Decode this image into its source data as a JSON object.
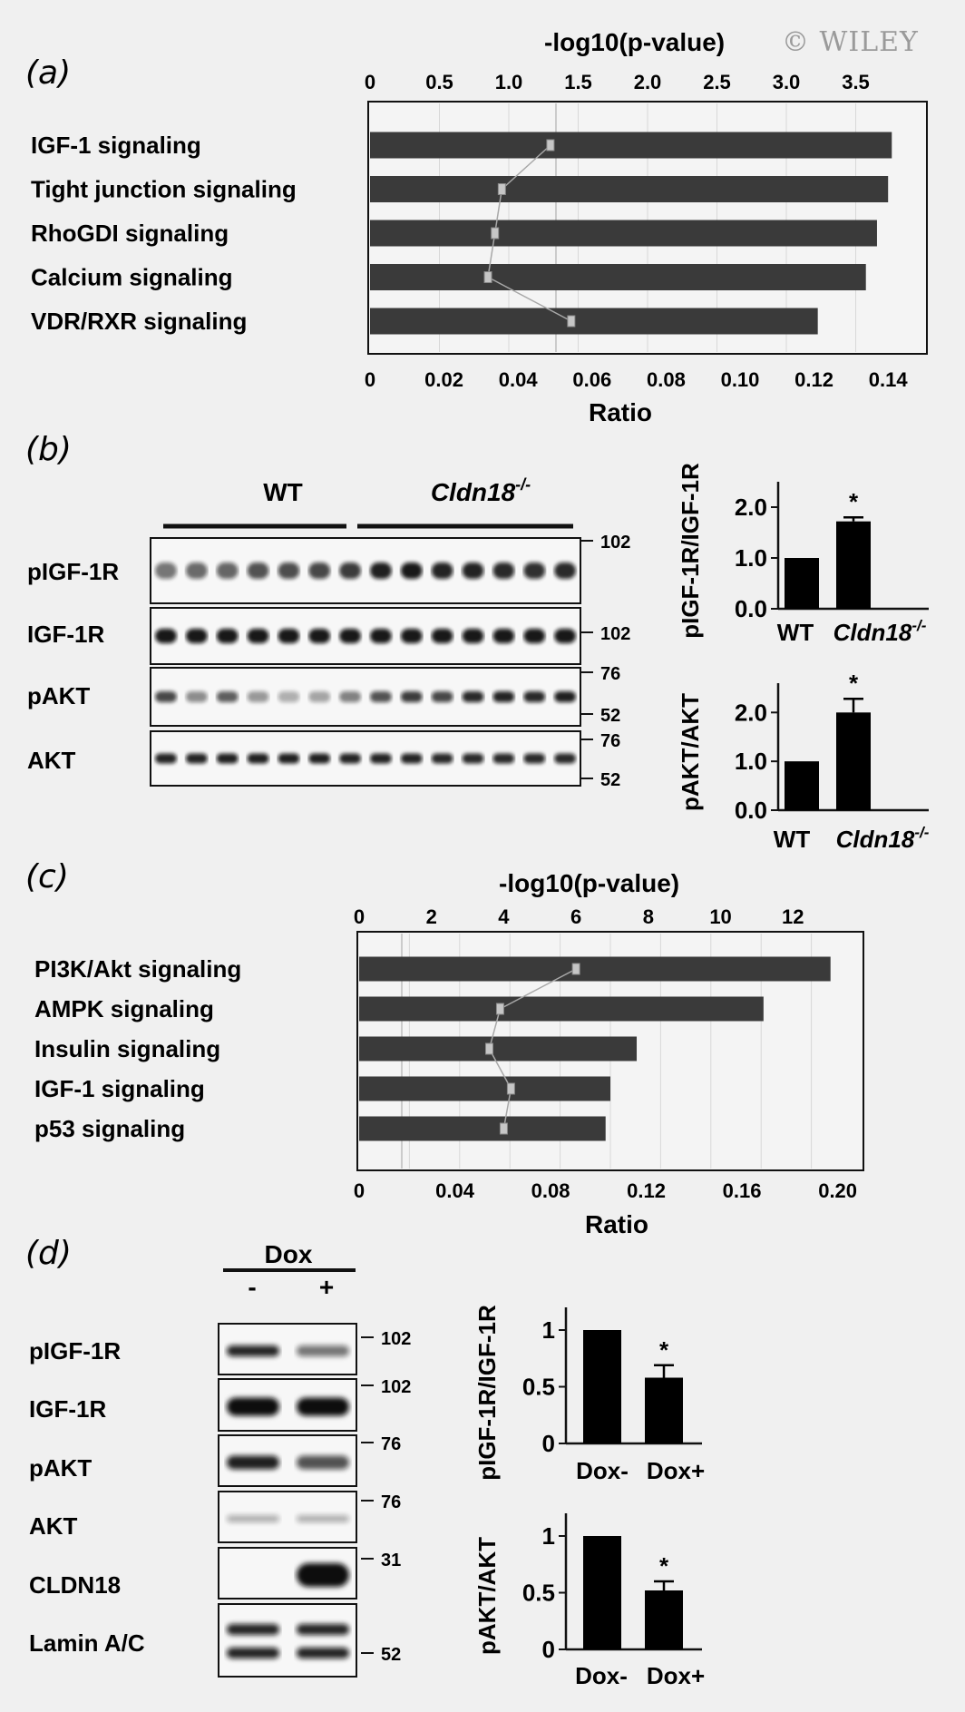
{
  "watermark": "© WILEY",
  "panels": {
    "a": {
      "label": "(a)",
      "top_axis_title": "-log10(p-value)",
      "top_ticks": [
        "0",
        "0.5",
        "1.0",
        "1.5",
        "2.0",
        "2.5",
        "3.0",
        "3.5"
      ],
      "bottom_ticks": [
        "0",
        "0.02",
        "0.04",
        "0.06",
        "0.08",
        "0.10",
        "0.12",
        "0.14"
      ],
      "bottom_axis_title": "Ratio"
    },
    "b": {
      "label": "(b)",
      "group_wt": "WT",
      "group_ko_base": "Cldn18",
      "group_ko_sup": "-/-",
      "blots": [
        "pIGF-1R",
        "IGF-1R",
        "pAKT",
        "AKT"
      ],
      "markers": {
        "pIGF1R": "102",
        "IGF1R": "102",
        "pAKT_top": "76",
        "pAKT_bottom": "52",
        "AKT_top": "76",
        "AKT_bottom": "52"
      }
    },
    "c": {
      "label": "(c)",
      "top_axis_title": "-log10(p-value)",
      "top_ticks": [
        "0",
        "2",
        "4",
        "6",
        "8",
        "10",
        "12"
      ],
      "bottom_ticks": [
        "0",
        "0.04",
        "0.08",
        "0.12",
        "0.16",
        "0.20"
      ],
      "bottom_axis_title": "Ratio"
    },
    "d": {
      "label": "(d)",
      "dox_title": "Dox",
      "minus": "-",
      "plus": "+",
      "blots": [
        "pIGF-1R",
        "IGF-1R",
        "pAKT",
        "AKT",
        "CLDN18",
        "Lamin A/C"
      ],
      "markers": {
        "pIGF1R": "102",
        "IGF1R": "102",
        "pAKT": "76",
        "AKT": "76",
        "CLDN18": "31",
        "Lamin": "52"
      }
    }
  },
  "chart_data": [
    {
      "id": "a",
      "type": "bar",
      "orientation": "horizontal",
      "categories": [
        "IGF-1 signaling",
        "Tight junction signaling",
        "RhoGDI signaling",
        "Calcium signaling",
        "VDR/RXR signaling"
      ],
      "series": [
        {
          "values": [
            0.141,
            0.14,
            0.137,
            0.134,
            0.121
          ]
        },
        {
          "values": [
            1.3,
            0.95,
            0.9,
            0.85,
            1.45
          ]
        }
      ],
      "xlim": [
        0,
        0.15
      ],
      "x2lim": [
        0,
        4.0
      ],
      "xlabel": "Ratio",
      "x2label": "-log10(p-value)"
    },
    {
      "id": "b1",
      "type": "bar",
      "categories": [
        "WT",
        "Cldn18-/-"
      ],
      "values": [
        1.0,
        1.72
      ],
      "errors": [
        0.0,
        0.08
      ],
      "ylabel": "pIGF-1R/IGF-1R",
      "yticks": [
        "0.0",
        "1.0",
        "2.0"
      ],
      "ylim": [
        0,
        2.5
      ],
      "significance": [
        "",
        "*"
      ]
    },
    {
      "id": "b2",
      "type": "bar",
      "categories": [
        "WT",
        "Cldn18-/-"
      ],
      "values": [
        1.0,
        2.0
      ],
      "errors": [
        0.0,
        0.28
      ],
      "ylabel": "pAKT/AKT",
      "yticks": [
        "0.0",
        "1.0",
        "2.0"
      ],
      "ylim": [
        0,
        2.6
      ],
      "significance": [
        "",
        "*"
      ]
    },
    {
      "id": "c",
      "type": "bar",
      "orientation": "horizontal",
      "categories": [
        "PI3K/Akt signaling",
        "AMPK signaling",
        "Insulin signaling",
        "IGF-1 signaling",
        "p53 signaling"
      ],
      "series": [
        {
          "values": [
            0.197,
            0.169,
            0.116,
            0.105,
            0.103
          ]
        },
        {
          "values": [
            6.0,
            3.9,
            3.6,
            4.2,
            4.0
          ]
        }
      ],
      "xlim": [
        0,
        0.21
      ],
      "x2lim": [
        0,
        13.9
      ],
      "xlabel": "Ratio",
      "x2label": "-log10(p-value)"
    },
    {
      "id": "d1",
      "type": "bar",
      "categories": [
        "Dox-",
        "Dox+"
      ],
      "values": [
        1.0,
        0.58
      ],
      "errors": [
        0.0,
        0.11
      ],
      "ylabel": "pIGF-1R/IGF-1R",
      "yticks": [
        "0",
        "0.5",
        "1"
      ],
      "ylim": [
        0,
        1.2
      ],
      "significance": [
        "",
        "*"
      ]
    },
    {
      "id": "d2",
      "type": "bar",
      "categories": [
        "Dox-",
        "Dox+"
      ],
      "values": [
        1.0,
        0.52
      ],
      "errors": [
        0.0,
        0.08
      ],
      "ylabel": "pAKT/AKT",
      "yticks": [
        "0",
        "0.5",
        "1"
      ],
      "ylim": [
        0,
        1.2
      ],
      "significance": [
        "",
        "*"
      ]
    }
  ]
}
